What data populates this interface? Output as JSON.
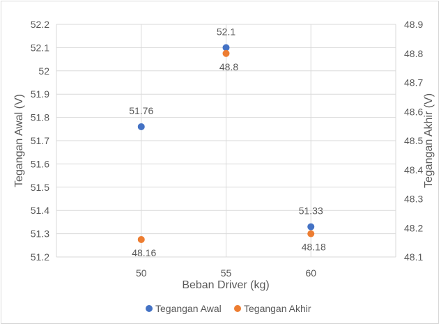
{
  "chart_data": {
    "type": "scatter",
    "title": "",
    "xlabel": "Beban Driver (kg)",
    "ylabel_left": "Tegangan Awal (V)",
    "ylabel_right": "Tegangan Akhir (V)",
    "x_ticks": [
      "50",
      "55",
      "60"
    ],
    "xlim": [
      45,
      65
    ],
    "ylim_left": [
      51.2,
      52.2
    ],
    "ylim_right": [
      48.1,
      48.9
    ],
    "y_ticks_left": [
      "51.2",
      "51.3",
      "51.4",
      "51.5",
      "51.6",
      "51.7",
      "51.8",
      "51.9",
      "52",
      "52.1",
      "52.2"
    ],
    "y_ticks_right": [
      "48.1",
      "48.2",
      "48.3",
      "48.4",
      "48.5",
      "48.6",
      "48.7",
      "48.8",
      "48.9"
    ],
    "grid": true,
    "legend_position": "bottom",
    "series": [
      {
        "name": "Tegangan Awal",
        "axis": "left",
        "color": "#4472c4",
        "x": [
          50,
          55,
          60
        ],
        "y": [
          51.76,
          52.1,
          51.33
        ],
        "labels": [
          "51.76",
          "52.1",
          "51.33"
        ],
        "label_position": "above"
      },
      {
        "name": "Tegangan Akhir",
        "axis": "right",
        "color": "#ed7d31",
        "x": [
          50,
          55,
          60
        ],
        "y": [
          48.16,
          48.8,
          48.18
        ],
        "labels": [
          "48.16",
          "48.8",
          "48.18"
        ],
        "label_position": "below"
      }
    ]
  }
}
